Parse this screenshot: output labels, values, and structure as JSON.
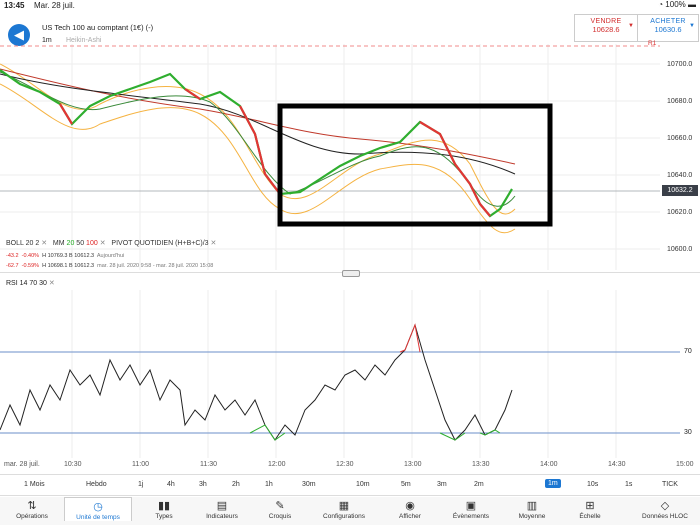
{
  "status_bar": {
    "time": "13:45",
    "date": "Mar. 28 juil.",
    "icons": "◔ 100% ▬"
  },
  "header": {
    "instrument": "US Tech 100 au comptant (1€) (-)",
    "timeframe": "1m",
    "chart_type": "Heikin-Ashi"
  },
  "trade": {
    "sell_label": "VENDRE",
    "sell_price": "10628.6",
    "buy_label": "ACHETER",
    "buy_price": "10630.6",
    "sell_color": "#d22d2d",
    "buy_color": "#1c77d2"
  },
  "pivot_label": "R1",
  "price_axis": [
    "10700.0",
    "10680.0",
    "10660.0",
    "10640.0",
    "10620.0",
    "10600.0"
  ],
  "current_price": "10632.2",
  "indicators": {
    "boll": "BOLL",
    "boll_p1": "20",
    "boll_p2": "2",
    "mm": "MM",
    "mm_p1": "20",
    "mm_p2": "50",
    "mm_p3": "100",
    "pivot": "PIVOT",
    "pivot_type": "QUOTIDIEN",
    "pivot_formula": "(H+B+C)/3"
  },
  "stats": {
    "row1_change": "-43.2",
    "row1_pct": "-0.40%",
    "row1_hl": "H 10769.3  B 10612.3",
    "row1_label": "Aujourd'hui",
    "row2_change": "-62.7",
    "row2_pct": "-0.59%",
    "row2_hl": "H 10698.1  B 10612.3",
    "row2_label": "mar. 28 juil. 2020 9:58 - mar. 28 juil. 2020 15:08"
  },
  "rsi": {
    "label": "RSI",
    "p1": "14",
    "p2": "70",
    "p3": "30",
    "upper": "70",
    "lower": "30"
  },
  "time_axis": [
    "mar. 28 juil.",
    "10:30",
    "11:00",
    "11:30",
    "12:00",
    "12:30",
    "13:00",
    "13:30",
    "14:00",
    "14:30",
    "15:00"
  ],
  "periods": [
    "1 Mois",
    "Hebdo",
    "1j",
    "4h",
    "3h",
    "2h",
    "1h",
    "30m",
    "10m",
    "5m",
    "3m",
    "2m",
    "1m",
    "10s",
    "1s",
    "TICK"
  ],
  "active_period": "1m",
  "toolbar": [
    {
      "label": "Opérations",
      "icon": "sort-icon"
    },
    {
      "label": "Unité de temps",
      "icon": "clock-icon"
    },
    {
      "label": "Types",
      "icon": "candles-icon"
    },
    {
      "label": "Indicateurs",
      "icon": "chart-icon"
    },
    {
      "label": "Croquis",
      "icon": "pencil-icon"
    },
    {
      "label": "Configurations",
      "icon": "layout-icon"
    },
    {
      "label": "Afficher",
      "icon": "eye-icon"
    },
    {
      "label": "Évènements",
      "icon": "calendar-icon"
    },
    {
      "label": "Moyenne",
      "icon": "bars-icon"
    },
    {
      "label": "Échelle",
      "icon": "scale-icon"
    },
    {
      "label": "Données HLOC",
      "icon": "info-icon"
    }
  ]
}
